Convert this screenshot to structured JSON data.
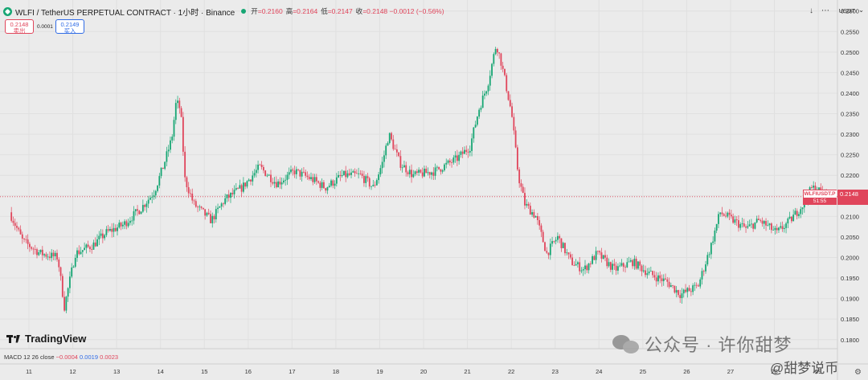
{
  "header": {
    "symbol": "WLFI / TetherUS PERPETUAL CONTRACT · 1小时 · Binance",
    "ohlc": [
      {
        "label": "开",
        "value": "=0.2160"
      },
      {
        "label": "高",
        "value": "=0.2164"
      },
      {
        "label": "低",
        "value": "=0.2147"
      },
      {
        "label": "收",
        "value": "=0.2148 −0.0012 (−0.56%)"
      }
    ]
  },
  "trade": {
    "sell_price": "0.2148",
    "sell_label": "卖出",
    "spread": "0.0001",
    "buy_price": "0.2149",
    "buy_label": "买入"
  },
  "toolbar": {
    "down_icon": "↓",
    "more_icon": "⋯",
    "currency": "USDT"
  },
  "price_tag": {
    "ticker": "WLFIUSDT.P",
    "countdown": "51:55",
    "price": "0.2148"
  },
  "branding": {
    "name": "TradingView"
  },
  "indicator": {
    "label": "MACD 12 26 close",
    "v1": "−0.0004",
    "v2": "0.0019",
    "v3": "0.0023"
  },
  "watermark": {
    "main": "公众号 · 许你甜梦",
    "sub": "@甜梦说币"
  },
  "colors": {
    "up": "#16a673",
    "down": "#e0455b",
    "bg": "#ebebeb"
  },
  "chart_data": {
    "type": "candlestick",
    "timeframe": "1h",
    "x_ticks": [
      "11",
      "12",
      "13",
      "14",
      "15",
      "16",
      "17",
      "18",
      "19",
      "20",
      "21",
      "22",
      "23",
      "24",
      "25",
      "26",
      "27",
      "28",
      "29"
    ],
    "y_ticks": [
      "0.2600",
      "0.2550",
      "0.2500",
      "0.2450",
      "0.2400",
      "0.2350",
      "0.2300",
      "0.2250",
      "0.2200",
      "0.2150",
      "0.2100",
      "0.2050",
      "0.2000",
      "0.1950",
      "0.1900",
      "0.1850",
      "0.1800"
    ],
    "ylim": [
      0.1778,
      0.2617
    ],
    "last_price": 0.2148,
    "trend": [
      {
        "day": 10.6,
        "price": 0.211
      },
      {
        "day": 10.9,
        "price": 0.204
      },
      {
        "day": 11.3,
        "price": 0.201
      },
      {
        "day": 11.7,
        "price": 0.2
      },
      {
        "day": 11.85,
        "price": 0.188
      },
      {
        "day": 12.1,
        "price": 0.201
      },
      {
        "day": 12.5,
        "price": 0.203
      },
      {
        "day": 12.8,
        "price": 0.206
      },
      {
        "day": 13.2,
        "price": 0.208
      },
      {
        "day": 13.6,
        "price": 0.212
      },
      {
        "day": 13.9,
        "price": 0.216
      },
      {
        "day": 14.1,
        "price": 0.222
      },
      {
        "day": 14.3,
        "price": 0.229
      },
      {
        "day": 14.4,
        "price": 0.238
      },
      {
        "day": 14.5,
        "price": 0.236
      },
      {
        "day": 14.6,
        "price": 0.219
      },
      {
        "day": 14.8,
        "price": 0.213
      },
      {
        "day": 15.2,
        "price": 0.209
      },
      {
        "day": 15.5,
        "price": 0.214
      },
      {
        "day": 15.9,
        "price": 0.217
      },
      {
        "day": 16.3,
        "price": 0.222
      },
      {
        "day": 16.7,
        "price": 0.218
      },
      {
        "day": 17.1,
        "price": 0.221
      },
      {
        "day": 17.5,
        "price": 0.219
      },
      {
        "day": 17.8,
        "price": 0.217
      },
      {
        "day": 18.2,
        "price": 0.22
      },
      {
        "day": 18.6,
        "price": 0.22
      },
      {
        "day": 18.9,
        "price": 0.217
      },
      {
        "day": 19.1,
        "price": 0.223
      },
      {
        "day": 19.25,
        "price": 0.23
      },
      {
        "day": 19.5,
        "price": 0.223
      },
      {
        "day": 19.8,
        "price": 0.22
      },
      {
        "day": 20.3,
        "price": 0.221
      },
      {
        "day": 20.8,
        "price": 0.224
      },
      {
        "day": 21.1,
        "price": 0.227
      },
      {
        "day": 21.3,
        "price": 0.236
      },
      {
        "day": 21.5,
        "price": 0.242
      },
      {
        "day": 21.7,
        "price": 0.252
      },
      {
        "day": 21.8,
        "price": 0.248
      },
      {
        "day": 21.9,
        "price": 0.243
      },
      {
        "day": 22.05,
        "price": 0.235
      },
      {
        "day": 22.2,
        "price": 0.22
      },
      {
        "day": 22.35,
        "price": 0.213
      },
      {
        "day": 22.6,
        "price": 0.21
      },
      {
        "day": 22.85,
        "price": 0.201
      },
      {
        "day": 23.1,
        "price": 0.205
      },
      {
        "day": 23.4,
        "price": 0.199
      },
      {
        "day": 23.7,
        "price": 0.197
      },
      {
        "day": 24.0,
        "price": 0.201
      },
      {
        "day": 24.4,
        "price": 0.197
      },
      {
        "day": 24.8,
        "price": 0.199
      },
      {
        "day": 25.2,
        "price": 0.196
      },
      {
        "day": 25.6,
        "price": 0.194
      },
      {
        "day": 25.9,
        "price": 0.191
      },
      {
        "day": 26.3,
        "price": 0.193
      },
      {
        "day": 26.6,
        "price": 0.203
      },
      {
        "day": 26.8,
        "price": 0.211
      },
      {
        "day": 27.1,
        "price": 0.209
      },
      {
        "day": 27.4,
        "price": 0.207
      },
      {
        "day": 27.7,
        "price": 0.209
      },
      {
        "day": 28.1,
        "price": 0.206
      },
      {
        "day": 28.4,
        "price": 0.209
      },
      {
        "day": 28.7,
        "price": 0.213
      },
      {
        "day": 28.9,
        "price": 0.217
      },
      {
        "day": 29.1,
        "price": 0.216
      },
      {
        "day": 29.3,
        "price": 0.2148
      }
    ]
  }
}
